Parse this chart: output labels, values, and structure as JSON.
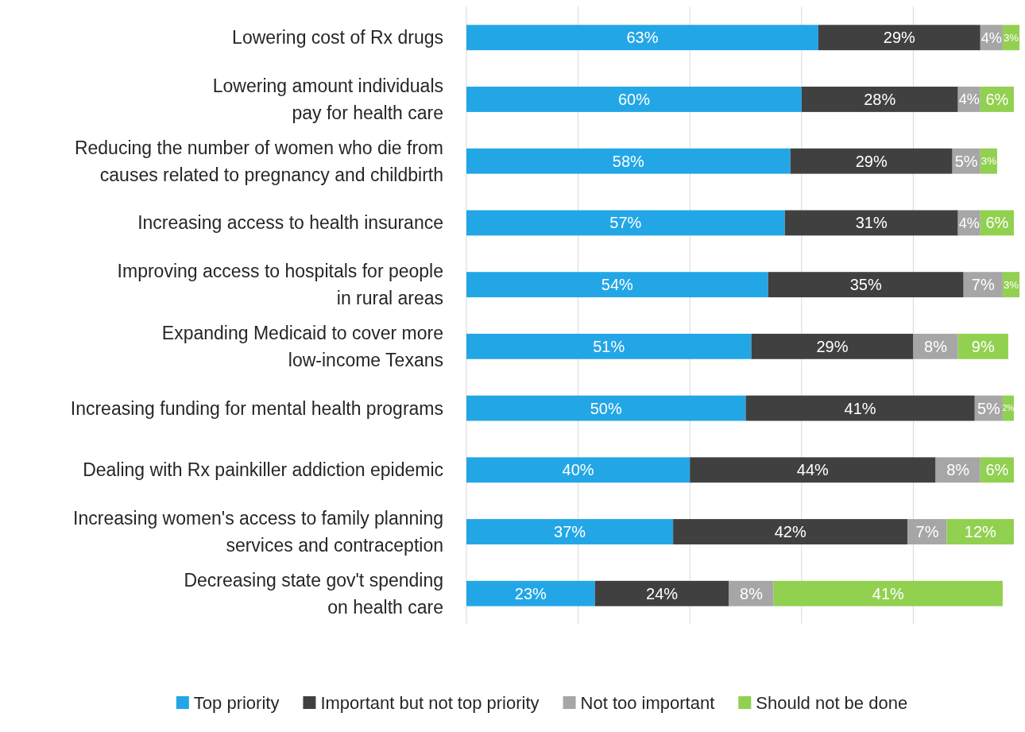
{
  "chart_data": {
    "type": "bar",
    "orientation": "horizontal",
    "stacked": true,
    "grid": "x",
    "legend": "bottom",
    "categories": [
      "Lowering cost of Rx drugs",
      "Lowering amount individuals\npay for health care",
      "Reducing the number of women who die from\ncauses related to pregnancy and childbirth",
      "Increasing access to health insurance",
      "Improving access to hospitals for people\nin rural areas",
      "Expanding Medicaid to cover more\nlow-income Texans",
      "Increasing funding for mental health programs",
      "Dealing with Rx painkiller addiction epidemic",
      "Increasing women's access to family planning\nservices and contraception",
      "Decreasing state gov't spending\non health care"
    ],
    "series": [
      {
        "name": "Top priority",
        "color": "#23a6e6",
        "values": [
          63,
          60,
          58,
          57,
          54,
          51,
          50,
          40,
          37,
          23
        ],
        "value_labels": [
          "63%",
          "60%",
          "58%",
          "57%",
          "54%",
          "51%",
          "50%",
          "40%",
          "37%",
          "23%"
        ]
      },
      {
        "name": "Important but not top priority",
        "color": "#404040",
        "values": [
          29,
          28,
          29,
          31,
          35,
          29,
          41,
          44,
          42,
          24
        ],
        "value_labels": [
          "29%",
          "28%",
          "29%",
          "31%",
          "35%",
          "29%",
          "41%",
          "44%",
          "42%",
          "24%"
        ]
      },
      {
        "name": "Not too important",
        "color": "#a6a6a6",
        "values": [
          4,
          4,
          5,
          4,
          7,
          8,
          5,
          8,
          7,
          8
        ],
        "value_labels": [
          "4%",
          "4%",
          "5%",
          "4%",
          "7%",
          "8%",
          "5%",
          "8%",
          "7%",
          "8%"
        ]
      },
      {
        "name": "Should not be done",
        "color": "#92d050",
        "values": [
          3,
          6,
          3,
          6,
          3,
          9,
          2,
          6,
          12,
          41
        ],
        "value_labels": [
          "3%",
          "6%",
          "3%",
          "6%",
          "3%",
          "9%",
          "2%",
          "6%",
          "12%",
          "41%"
        ]
      }
    ]
  }
}
